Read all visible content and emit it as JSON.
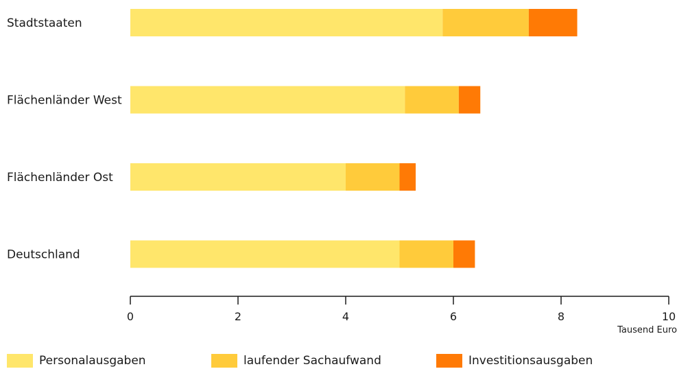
{
  "chart_data": {
    "type": "bar",
    "orientation": "horizontal",
    "stacked": true,
    "categories": [
      "Stadtstaaten",
      "Flächenländer West",
      "Flächenländer Ost",
      "Deutschland"
    ],
    "series": [
      {
        "name": "Personalausgaben",
        "color": "#ffe66b",
        "values": [
          5.8,
          5.1,
          4.0,
          5.0
        ]
      },
      {
        "name": "laufender Sachaufwand",
        "color": "#ffcb3b",
        "values": [
          1.6,
          1.0,
          1.0,
          1.0
        ]
      },
      {
        "name": "Investitionsausgaben",
        "color": "#ff7a05",
        "values": [
          0.9,
          0.4,
          0.3,
          0.4
        ]
      }
    ],
    "xlim": [
      0,
      10
    ],
    "xticks": [
      "0",
      "2",
      "4",
      "6",
      "8",
      "10"
    ],
    "xlabel": "Tausend Euro",
    "ylabel": "",
    "title": "",
    "grid": false,
    "legend_position": "bottom"
  }
}
